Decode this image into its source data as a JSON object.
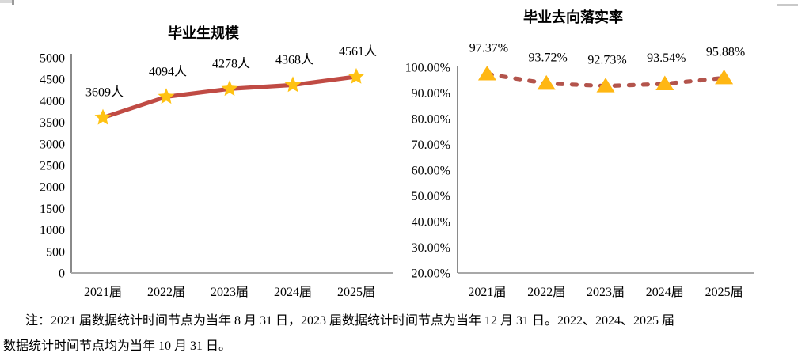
{
  "chart_data": [
    {
      "type": "line",
      "title": "毕业生规模",
      "categories": [
        "2021届",
        "2022届",
        "2023届",
        "2024届",
        "2025届"
      ],
      "series": [
        {
          "name": "毕业生规模",
          "values": [
            3609,
            4094,
            4278,
            4368,
            4561
          ]
        }
      ],
      "point_labels": [
        "3609人",
        "4094人",
        "4278人",
        "4368人",
        "4561人"
      ],
      "xlabel": "",
      "ylabel": "",
      "ylim": [
        0,
        5000
      ],
      "yticks": [
        {
          "v": 5000,
          "label": "5000"
        },
        {
          "v": 4500,
          "label": "4500"
        },
        {
          "v": 4000,
          "label": "4000"
        },
        {
          "v": 3500,
          "label": "3500"
        },
        {
          "v": 3000,
          "label": "3000"
        },
        {
          "v": 2500,
          "label": "2500"
        },
        {
          "v": 2000,
          "label": "2000"
        },
        {
          "v": 1500,
          "label": "1500"
        },
        {
          "v": 1000,
          "label": "1000"
        },
        {
          "v": 500,
          "label": "500"
        },
        {
          "v": 0,
          "label": "0"
        }
      ],
      "grid": false,
      "legend": "none",
      "marker": "star",
      "line_style": "solid",
      "line_color": "#c04b44",
      "marker_color": "#ffc212"
    },
    {
      "type": "line",
      "title": "毕业去向落实率",
      "categories": [
        "2021届",
        "2022届",
        "2023届",
        "2024届",
        "2025届"
      ],
      "series": [
        {
          "name": "毕业去向落实率",
          "values": [
            97.37,
            93.72,
            92.73,
            93.54,
            95.88
          ]
        }
      ],
      "point_labels": [
        "97.37%",
        "93.72%",
        "92.73%",
        "93.54%",
        "95.88%"
      ],
      "xlabel": "",
      "ylabel": "",
      "ylim": [
        20,
        100
      ],
      "yticks": [
        {
          "v": 100,
          "label": "100.00%"
        },
        {
          "v": 90,
          "label": "90.00%"
        },
        {
          "v": 80,
          "label": "80.00%"
        },
        {
          "v": 70,
          "label": "70.00%"
        },
        {
          "v": 60,
          "label": "60.00%"
        },
        {
          "v": 50,
          "label": "50.00%"
        },
        {
          "v": 40,
          "label": "40.00%"
        },
        {
          "v": 30,
          "label": "30.00%"
        },
        {
          "v": 20,
          "label": "20.00%"
        }
      ],
      "grid": false,
      "legend": "none",
      "marker": "triangle",
      "line_style": "dashed",
      "line_color": "#b3544c",
      "marker_color": "#ffb713"
    }
  ],
  "colors": {
    "axis_vertical": "#8a8a8a",
    "axis_horizontal": "#a8a8a8",
    "text": "#000000",
    "background": "#ffffff"
  },
  "note": {
    "line1": "注：2021 届数据统计时间节点为当年 8 月 31 日，2023 届数据统计时间节点为当年 12 月 31 日。2022、2024、2025 届",
    "line2": "数据统计时间节点均为当年 10 月 31 日。"
  }
}
